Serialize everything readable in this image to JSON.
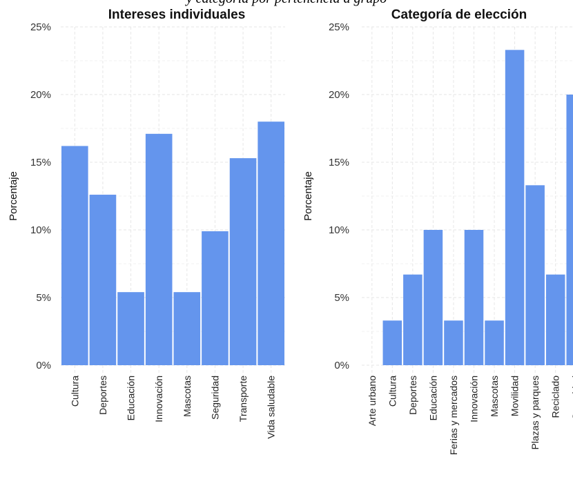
{
  "page": {
    "title": "y categoría por pertenencia a grupo"
  },
  "chart_data": [
    {
      "type": "bar",
      "title": "Intereses individuales",
      "ylabel": "Porcentaje",
      "xlabel": "",
      "ylim": [
        0,
        25
      ],
      "yticks": [
        "0%",
        "5%",
        "10%",
        "15%",
        "20%",
        "25%"
      ],
      "grid": true,
      "bar_color": "#6495ED",
      "categories": [
        "Cultura",
        "Deportes",
        "Educación",
        "Innovación",
        "Mascotas",
        "Seguridad",
        "Transporte",
        "Vida saludable"
      ],
      "values": [
        16.2,
        12.6,
        5.4,
        17.1,
        5.4,
        9.9,
        15.3,
        18.0
      ]
    },
    {
      "type": "bar",
      "title": "Categoría de elección",
      "ylabel": "Porcentaje",
      "xlabel": "",
      "ylim": [
        0,
        25
      ],
      "yticks": [
        "0%",
        "5%",
        "10%",
        "15%",
        "20%",
        "25%"
      ],
      "grid": true,
      "bar_color": "#6495ED",
      "categories": [
        "Arte urbano",
        "Cultura",
        "Deportes",
        "Educación",
        "Ferias y mercados",
        "Innovación",
        "Mascotas",
        "Movilidad",
        "Plazas y parques",
        "Reciclado",
        "Seguridad"
      ],
      "values": [
        0,
        3.3,
        6.7,
        10.0,
        3.3,
        10.0,
        3.3,
        23.3,
        13.3,
        6.7,
        20.0
      ]
    }
  ]
}
